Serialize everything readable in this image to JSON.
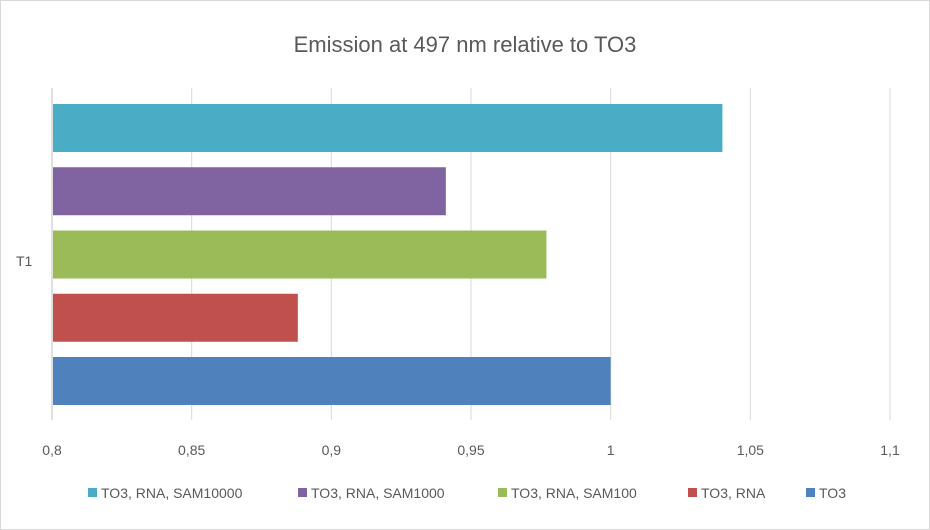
{
  "chart_data": {
    "type": "bar",
    "orientation": "horizontal",
    "title": "Emission at 497 nm relative to TO3",
    "categories": [
      "T1"
    ],
    "series": [
      {
        "name": "TO3",
        "values": [
          1.0
        ],
        "color": "#4f81bd"
      },
      {
        "name": "TO3, RNA",
        "values": [
          0.888
        ],
        "color": "#c0504d"
      },
      {
        "name": "TO3, RNA, SAM100",
        "values": [
          0.977
        ],
        "color": "#9bbb59"
      },
      {
        "name": "TO3, RNA, SAM1000",
        "values": [
          0.941
        ],
        "color": "#8064a2"
      },
      {
        "name": "TO3, RNA, SAM10000",
        "values": [
          1.04
        ],
        "color": "#4bacc6"
      }
    ],
    "xlim": [
      0.8,
      1.1
    ],
    "x_ticks": [
      "0,8",
      "0,85",
      "0,9",
      "0,95",
      "1",
      "1,05",
      "1,1"
    ],
    "x_tick_values": [
      0.8,
      0.85,
      0.9,
      0.95,
      1.0,
      1.05,
      1.1
    ],
    "grid": true,
    "legend_position": "bottom",
    "legend_order": [
      "TO3, RNA, SAM10000",
      "TO3, RNA, SAM1000",
      "TO3, RNA, SAM100",
      "TO3, RNA",
      "TO3"
    ],
    "colors": {
      "grid": "#d9d9d9",
      "text": "#595959"
    }
  }
}
